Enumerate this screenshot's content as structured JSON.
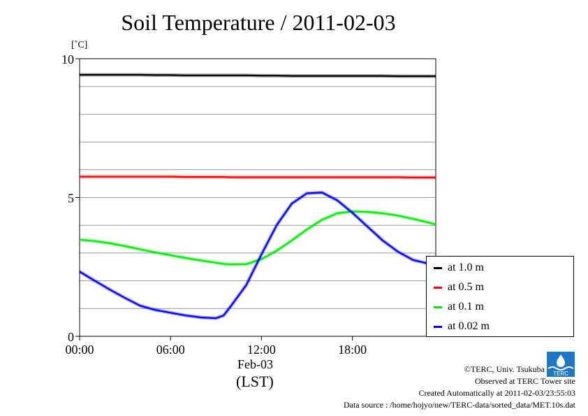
{
  "title": "Soil Temperature / 2011-02-03",
  "yunit": "[˚C]",
  "xdate": "Feb-03",
  "xlabel": "(LST)",
  "footer": {
    "copyright": "©TERC, Univ. Tsukuba",
    "observed": "Observed at TERC Tower site",
    "created": "Created Automatically at 2011-02-03/23:55:03",
    "source": "Data source : /home/hojyo/new/TERC-data/sorted_data/MET.10s.dat"
  },
  "logo_text": "TERC",
  "legend": [
    {
      "label": "at 1.0 m",
      "color": "#000000"
    },
    {
      "label": "at 0.5 m",
      "color": "#ff0000"
    },
    {
      "label": "at 0.1 m",
      "color": "#00ee00"
    },
    {
      "label": "at 0.02 m",
      "color": "#0000ff"
    }
  ],
  "chart_data": {
    "type": "line",
    "title": "Soil Temperature / 2011-02-03",
    "ylabel": "[˚C]",
    "xlabel": "(LST)",
    "xlim": [
      0,
      23.5
    ],
    "ylim": [
      0,
      10
    ],
    "xticks": [
      0,
      6,
      12,
      18
    ],
    "xtick_labels": [
      "00:00",
      "06:00",
      "12:00",
      "18:00"
    ],
    "yticks": [
      0,
      5,
      10
    ],
    "ytick_labels": [
      "0",
      "5",
      "10"
    ],
    "ygrid": [
      1,
      2,
      3,
      4,
      5,
      6,
      7,
      8,
      9,
      10
    ],
    "legend_position": "right",
    "x": [
      0,
      1,
      2,
      3,
      4,
      5,
      6,
      7,
      8,
      9,
      9.5,
      10,
      11,
      12,
      13,
      14,
      15,
      16,
      17,
      18,
      19,
      20,
      21,
      22,
      23,
      23.5
    ],
    "series": [
      {
        "name": "at 1.0 m",
        "color": "#000000",
        "values": [
          9.42,
          9.42,
          9.42,
          9.42,
          9.42,
          9.41,
          9.41,
          9.4,
          9.4,
          9.4,
          9.4,
          9.4,
          9.4,
          9.39,
          9.39,
          9.38,
          9.38,
          9.38,
          9.38,
          9.38,
          9.38,
          9.38,
          9.37,
          9.37,
          9.37,
          9.37
        ]
      },
      {
        "name": "at 0.5 m",
        "color": "#ff0000",
        "values": [
          5.75,
          5.75,
          5.75,
          5.75,
          5.75,
          5.75,
          5.75,
          5.74,
          5.74,
          5.74,
          5.74,
          5.73,
          5.73,
          5.73,
          5.73,
          5.73,
          5.73,
          5.73,
          5.73,
          5.73,
          5.73,
          5.73,
          5.73,
          5.72,
          5.72,
          5.72
        ]
      },
      {
        "name": "at 0.1 m",
        "color": "#00ee00",
        "values": [
          3.48,
          3.43,
          3.35,
          3.25,
          3.13,
          3.02,
          2.92,
          2.82,
          2.73,
          2.65,
          2.61,
          2.59,
          2.6,
          2.78,
          3.08,
          3.45,
          3.85,
          4.2,
          4.43,
          4.5,
          4.48,
          4.43,
          4.35,
          4.23,
          4.1,
          4.03
        ]
      },
      {
        "name": "at 0.02 m",
        "color": "#0000ff",
        "values": [
          2.33,
          2.0,
          1.68,
          1.38,
          1.1,
          0.95,
          0.85,
          0.75,
          0.68,
          0.65,
          0.75,
          1.1,
          1.85,
          2.95,
          4.0,
          4.78,
          5.15,
          5.18,
          4.9,
          4.45,
          3.95,
          3.45,
          3.05,
          2.75,
          2.62,
          2.62
        ]
      }
    ]
  }
}
